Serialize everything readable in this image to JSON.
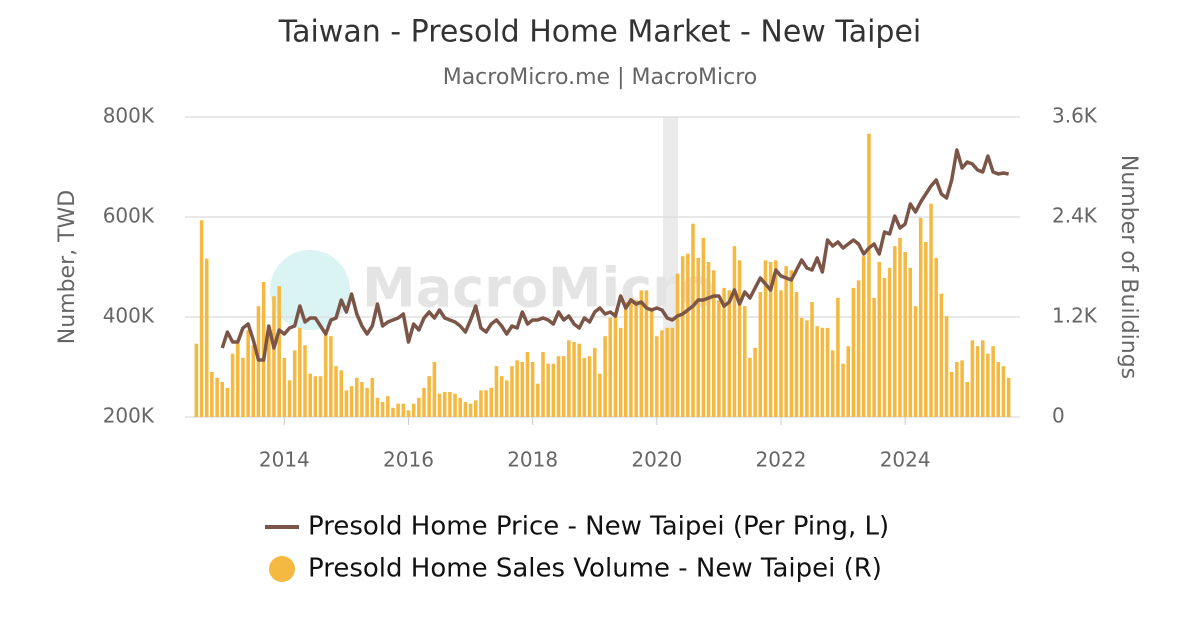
{
  "chart_data": {
    "type": "bar_line",
    "title": "Taiwan - Presold Home Market - New Taipei",
    "subtitle": "MacroMicro.me | MacroMicro",
    "watermark": "MacroMicro",
    "ylabel": "Number, TWD",
    "y2label": "Number of Buildings",
    "x": [
      2012.583,
      2012.667,
      2012.75,
      2012.833,
      2012.917,
      2013,
      2013.083,
      2013.167,
      2013.25,
      2013.333,
      2013.417,
      2013.5,
      2013.583,
      2013.667,
      2013.75,
      2013.833,
      2013.917,
      2014,
      2014.083,
      2014.167,
      2014.25,
      2014.333,
      2014.417,
      2014.5,
      2014.583,
      2014.667,
      2014.75,
      2014.833,
      2014.917,
      2015,
      2015.083,
      2015.167,
      2015.25,
      2015.333,
      2015.417,
      2015.5,
      2015.583,
      2015.667,
      2015.75,
      2015.833,
      2015.917,
      2016,
      2016.083,
      2016.167,
      2016.25,
      2016.333,
      2016.417,
      2016.5,
      2016.583,
      2016.667,
      2016.75,
      2016.833,
      2016.917,
      2017,
      2017.083,
      2017.167,
      2017.25,
      2017.333,
      2017.417,
      2017.5,
      2017.583,
      2017.667,
      2017.75,
      2017.833,
      2017.917,
      2018,
      2018.083,
      2018.167,
      2018.25,
      2018.333,
      2018.417,
      2018.5,
      2018.583,
      2018.667,
      2018.75,
      2018.833,
      2018.917,
      2019,
      2019.083,
      2019.167,
      2019.25,
      2019.333,
      2019.417,
      2019.5,
      2019.583,
      2019.667,
      2019.75,
      2019.833,
      2019.917,
      2020,
      2020.083,
      2020.167,
      2020.25,
      2020.333,
      2020.417,
      2020.5,
      2020.583,
      2020.667,
      2020.75,
      2020.833,
      2020.917,
      2021,
      2021.083,
      2021.167,
      2021.25,
      2021.333,
      2021.417,
      2021.5,
      2021.583,
      2021.667,
      2021.75,
      2021.833,
      2021.917,
      2022,
      2022.083,
      2022.167,
      2022.25,
      2022.333,
      2022.417,
      2022.5,
      2022.583,
      2022.667,
      2022.75,
      2022.833,
      2022.917,
      2023,
      2023.083,
      2023.167,
      2023.25,
      2023.333,
      2023.417,
      2023.5,
      2023.583,
      2023.667,
      2023.75,
      2023.833,
      2023.917,
      2024,
      2024.083,
      2024.167,
      2024.25,
      2024.333,
      2024.417,
      2024.5,
      2024.583,
      2024.667,
      2024.75,
      2024.833,
      2024.917,
      2025,
      2025.083,
      2025.167,
      2025.25,
      2025.333,
      2025.417,
      2025.5,
      2025.583,
      2025.667
    ],
    "xlim": [
      2012.4,
      2025.85
    ],
    "xticks": [
      2014,
      2016,
      2018,
      2020,
      2022,
      2024
    ],
    "ylim": [
      200000,
      800000
    ],
    "yticks": [
      {
        "value": 200000,
        "label": "200K"
      },
      {
        "value": 400000,
        "label": "400K"
      },
      {
        "value": 600000,
        "label": "600K"
      },
      {
        "value": 800000,
        "label": "800K"
      }
    ],
    "y2lim": [
      0,
      3600
    ],
    "y2ticks": [
      0,
      {
        "value": 1200,
        "label": "1.2K"
      },
      {
        "value": 2400,
        "label": "2.4K"
      },
      {
        "value": 3600,
        "label": "3.6K"
      }
    ],
    "grid": true,
    "series": [
      {
        "name": "Presold Home Price - New Taipei (Per Ping, L)",
        "type": "line",
        "color": "#7b5547",
        "values": [
          null,
          null,
          null,
          null,
          null,
          338000,
          370000,
          350000,
          350000,
          378000,
          386000,
          354000,
          314000,
          314000,
          382000,
          338000,
          374000,
          366000,
          378000,
          382000,
          422000,
          390000,
          398000,
          398000,
          382000,
          366000,
          394000,
          398000,
          434000,
          410000,
          446000,
          406000,
          382000,
          366000,
          382000,
          426000,
          382000,
          390000,
          394000,
          398000,
          406000,
          350000,
          386000,
          374000,
          398000,
          410000,
          398000,
          414000,
          398000,
          394000,
          390000,
          382000,
          370000,
          394000,
          422000,
          378000,
          370000,
          386000,
          394000,
          382000,
          366000,
          382000,
          378000,
          410000,
          386000,
          394000,
          394000,
          398000,
          394000,
          386000,
          410000,
          394000,
          402000,
          386000,
          378000,
          398000,
          390000,
          410000,
          418000,
          406000,
          410000,
          402000,
          442000,
          418000,
          434000,
          426000,
          430000,
          418000,
          414000,
          418000,
          414000,
          398000,
          394000,
          402000,
          406000,
          414000,
          422000,
          434000,
          434000,
          438000,
          442000,
          442000,
          422000,
          430000,
          454000,
          426000,
          450000,
          438000,
          458000,
          478000,
          466000,
          454000,
          494000,
          482000,
          478000,
          474000,
          494000,
          514000,
          498000,
          494000,
          518000,
          490000,
          554000,
          542000,
          550000,
          538000,
          546000,
          554000,
          546000,
          526000,
          538000,
          546000,
          526000,
          570000,
          566000,
          602000,
          578000,
          586000,
          626000,
          610000,
          630000,
          646000,
          662000,
          674000,
          646000,
          638000,
          674000,
          734000,
          698000,
          710000,
          706000,
          694000,
          690000,
          722000,
          690000,
          686000,
          688000,
          686000
        ]
      },
      {
        "name": "Presold Home Sales Volume - New Taipei (R)",
        "type": "bar",
        "axis": "y2",
        "color": "#f5b942",
        "values": [
          880,
          2360,
          1900,
          540,
          470,
          420,
          350,
          760,
          920,
          710,
          1040,
          860,
          1330,
          1620,
          1090,
          1450,
          1570,
          710,
          440,
          800,
          1070,
          860,
          520,
          490,
          490,
          1040,
          970,
          610,
          560,
          320,
          370,
          470,
          420,
          350,
          470,
          230,
          180,
          250,
          110,
          160,
          160,
          80,
          160,
          230,
          350,
          490,
          660,
          280,
          300,
          300,
          280,
          230,
          180,
          160,
          200,
          320,
          320,
          350,
          610,
          490,
          440,
          610,
          680,
          660,
          780,
          660,
          400,
          780,
          640,
          640,
          730,
          730,
          920,
          900,
          880,
          710,
          730,
          830,
          520,
          970,
          1190,
          1260,
          1070,
          1380,
          1430,
          1400,
          1520,
          1520,
          1310,
          970,
          1040,
          1070,
          1070,
          1720,
          1930,
          1960,
          2320,
          1910,
          2150,
          1860,
          1760,
          1400,
          1550,
          1520,
          2050,
          1880,
          1330,
          710,
          830,
          1500,
          1880,
          1860,
          1880,
          1520,
          1810,
          1760,
          1500,
          1190,
          1160,
          1380,
          1090,
          1070,
          1070,
          800,
          1430,
          640,
          850,
          1550,
          1640,
          1930,
          3400,
          1430,
          1860,
          1670,
          1790,
          2050,
          2150,
          1980,
          1790,
          1330,
          2390,
          2100,
          2560,
          1910,
          1480,
          1210,
          540,
          660,
          680,
          420,
          920,
          850,
          920,
          760,
          850,
          660,
          610,
          470
        ]
      }
    ]
  }
}
